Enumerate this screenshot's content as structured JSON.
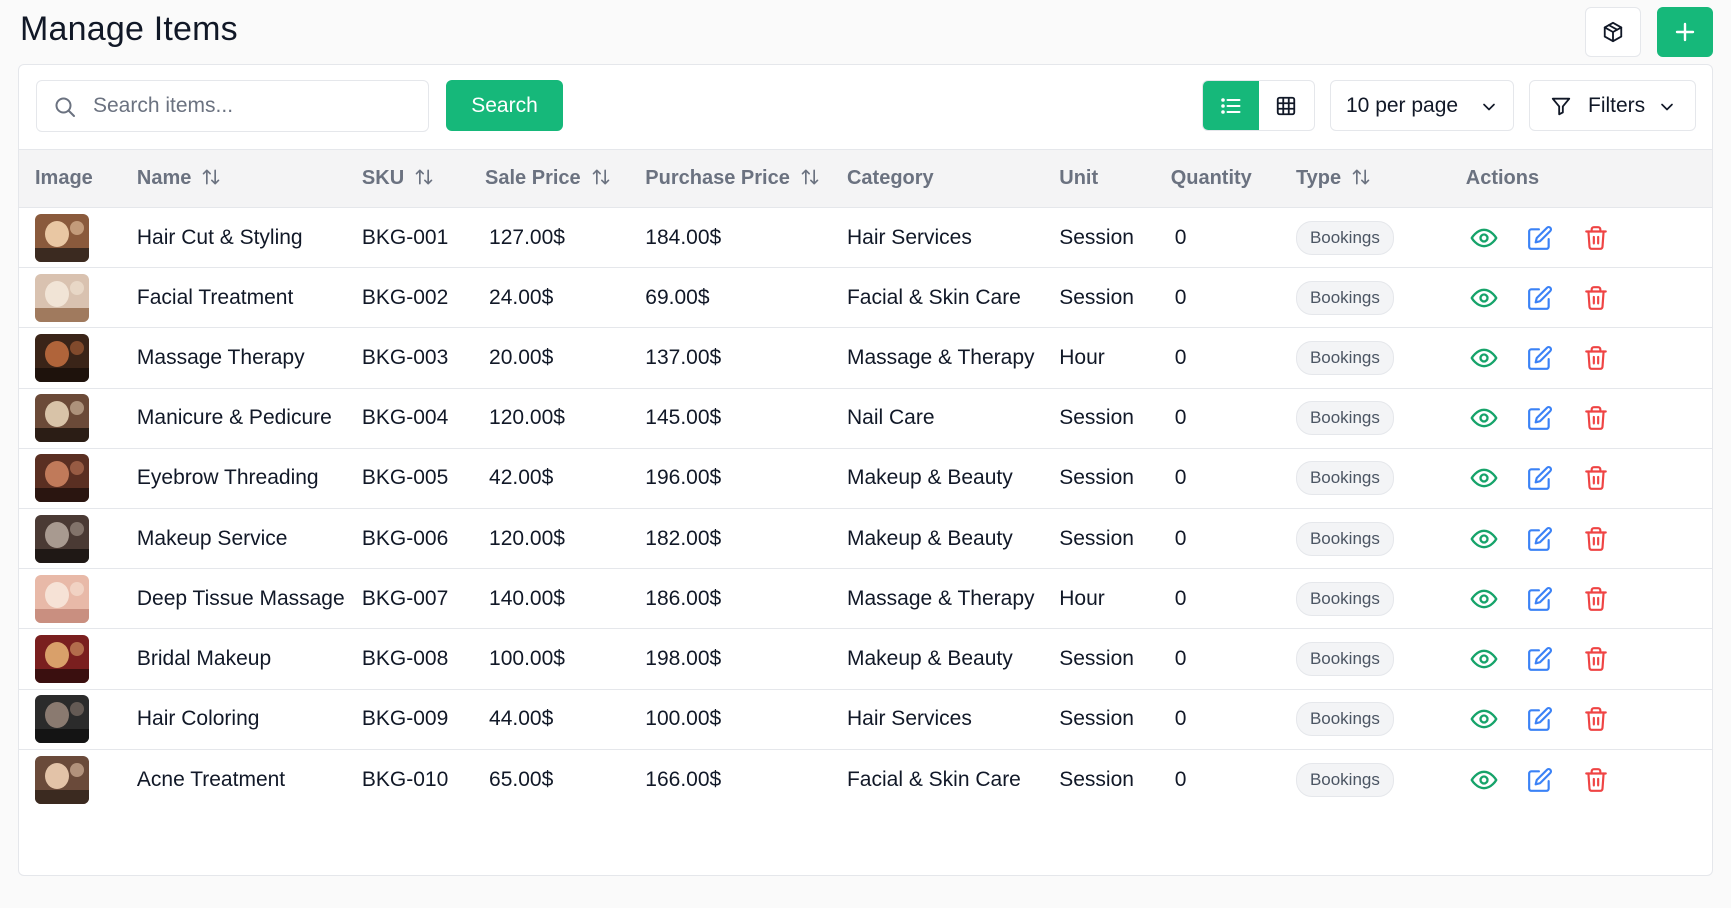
{
  "header": {
    "title": "Manage Items",
    "box_icon": "package-icon",
    "add_icon": "plus-icon"
  },
  "toolbar": {
    "search_placeholder": "Search items...",
    "search_value": "",
    "search_label": "Search",
    "view_mode": "list",
    "per_page": "10 per page",
    "filters_label": "Filters"
  },
  "colors": {
    "accent": "#16b87a",
    "view": "#16a36a",
    "edit": "#3b82f6",
    "delete": "#ef4444"
  },
  "table": {
    "columns": [
      "Image",
      "Name",
      "SKU",
      "Sale Price",
      "Purchase Price",
      "Category",
      "Unit",
      "Quantity",
      "Type",
      "Actions"
    ],
    "rows": [
      {
        "name": "Hair Cut & Styling",
        "sku": "BKG-001",
        "sale_price": "127.00$",
        "purchase_price": "184.00$",
        "category": "Hair Services",
        "unit": "Session",
        "quantity": "0",
        "type": "Bookings"
      },
      {
        "name": "Facial Treatment",
        "sku": "BKG-002",
        "sale_price": "24.00$",
        "purchase_price": "69.00$",
        "category": "Facial & Skin Care",
        "unit": "Session",
        "quantity": "0",
        "type": "Bookings"
      },
      {
        "name": "Massage Therapy",
        "sku": "BKG-003",
        "sale_price": "20.00$",
        "purchase_price": "137.00$",
        "category": "Massage & Therapy",
        "unit": "Hour",
        "quantity": "0",
        "type": "Bookings"
      },
      {
        "name": "Manicure & Pedicure",
        "sku": "BKG-004",
        "sale_price": "120.00$",
        "purchase_price": "145.00$",
        "category": "Nail Care",
        "unit": "Session",
        "quantity": "0",
        "type": "Bookings"
      },
      {
        "name": "Eyebrow Threading",
        "sku": "BKG-005",
        "sale_price": "42.00$",
        "purchase_price": "196.00$",
        "category": "Makeup & Beauty",
        "unit": "Session",
        "quantity": "0",
        "type": "Bookings"
      },
      {
        "name": "Makeup Service",
        "sku": "BKG-006",
        "sale_price": "120.00$",
        "purchase_price": "182.00$",
        "category": "Makeup & Beauty",
        "unit": "Session",
        "quantity": "0",
        "type": "Bookings"
      },
      {
        "name": "Deep Tissue Massage",
        "sku": "BKG-007",
        "sale_price": "140.00$",
        "purchase_price": "186.00$",
        "category": "Massage & Therapy",
        "unit": "Hour",
        "quantity": "0",
        "type": "Bookings"
      },
      {
        "name": "Bridal Makeup",
        "sku": "BKG-008",
        "sale_price": "100.00$",
        "purchase_price": "198.00$",
        "category": "Makeup & Beauty",
        "unit": "Session",
        "quantity": "0",
        "type": "Bookings"
      },
      {
        "name": "Hair Coloring",
        "sku": "BKG-009",
        "sale_price": "44.00$",
        "purchase_price": "100.00$",
        "category": "Hair Services",
        "unit": "Session",
        "quantity": "0",
        "type": "Bookings"
      },
      {
        "name": "Acne Treatment",
        "sku": "BKG-010",
        "sale_price": "65.00$",
        "purchase_price": "166.00$",
        "category": "Facial & Skin Care",
        "unit": "Session",
        "quantity": "0",
        "type": "Bookings"
      }
    ]
  }
}
